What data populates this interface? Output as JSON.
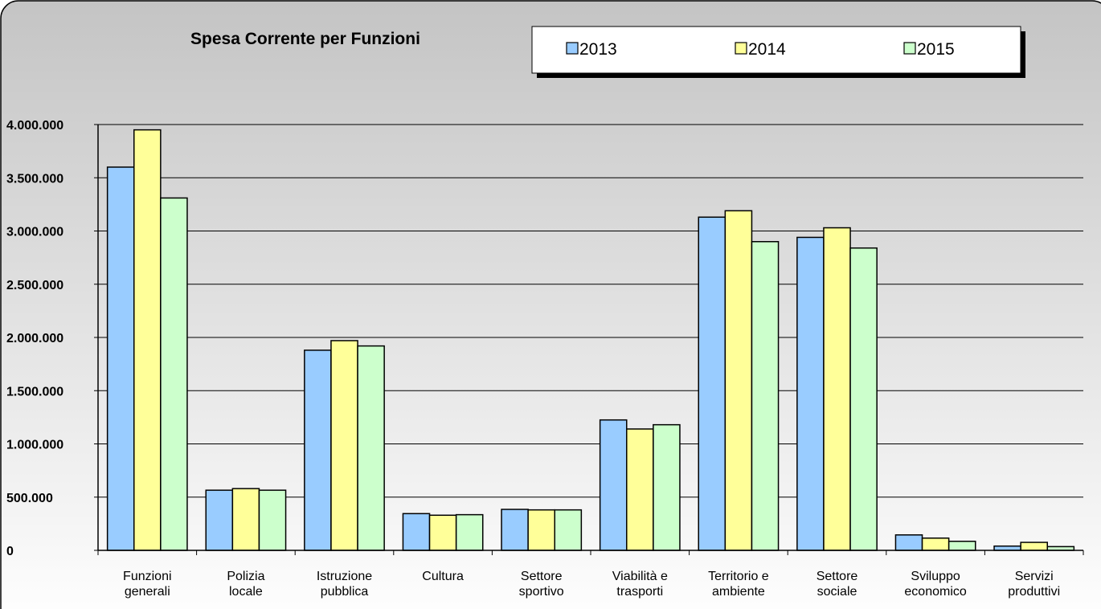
{
  "chart_data": {
    "type": "bar",
    "title": "Spesa Corrente per Funzioni",
    "categories": [
      "Funzioni\ngenerali",
      "Polizia\nlocale",
      "Istruzione\npubblica",
      "Cultura",
      "Settore\nsportivo",
      "Viabilità e\ntrasporti",
      "Territorio e\nambiente",
      "Settore\nsociale",
      "Sviluppo\neconomico",
      "Servizi\nproduttivi"
    ],
    "series": [
      {
        "name": "2013",
        "color": "#99ccff",
        "values": [
          3600000,
          565000,
          1880000,
          345000,
          385000,
          1225000,
          3130000,
          2940000,
          145000,
          40000
        ]
      },
      {
        "name": "2014",
        "color": "#ffff99",
        "values": [
          3950000,
          580000,
          1970000,
          330000,
          380000,
          1140000,
          3190000,
          3030000,
          115000,
          75000
        ]
      },
      {
        "name": "2015",
        "color": "#ccffcc",
        "values": [
          3310000,
          565000,
          1920000,
          335000,
          380000,
          1180000,
          2900000,
          2840000,
          85000,
          35000
        ]
      }
    ],
    "ylim": [
      0,
      4000000
    ],
    "yticks": [
      0,
      {
        "value": 500000,
        "label": "500.000"
      },
      {
        "value": 1000000,
        "label": "1.000.000"
      },
      {
        "value": 1500000,
        "label": "1.500.000"
      },
      {
        "value": 2000000,
        "label": "2.000.000"
      },
      {
        "value": 2500000,
        "label": "2.500.000"
      },
      {
        "value": 3000000,
        "label": "3.000.000"
      },
      {
        "value": 3500000,
        "label": "3.500.000"
      },
      {
        "value": 4000000,
        "label": "4.000.000"
      }
    ],
    "grid": true
  }
}
